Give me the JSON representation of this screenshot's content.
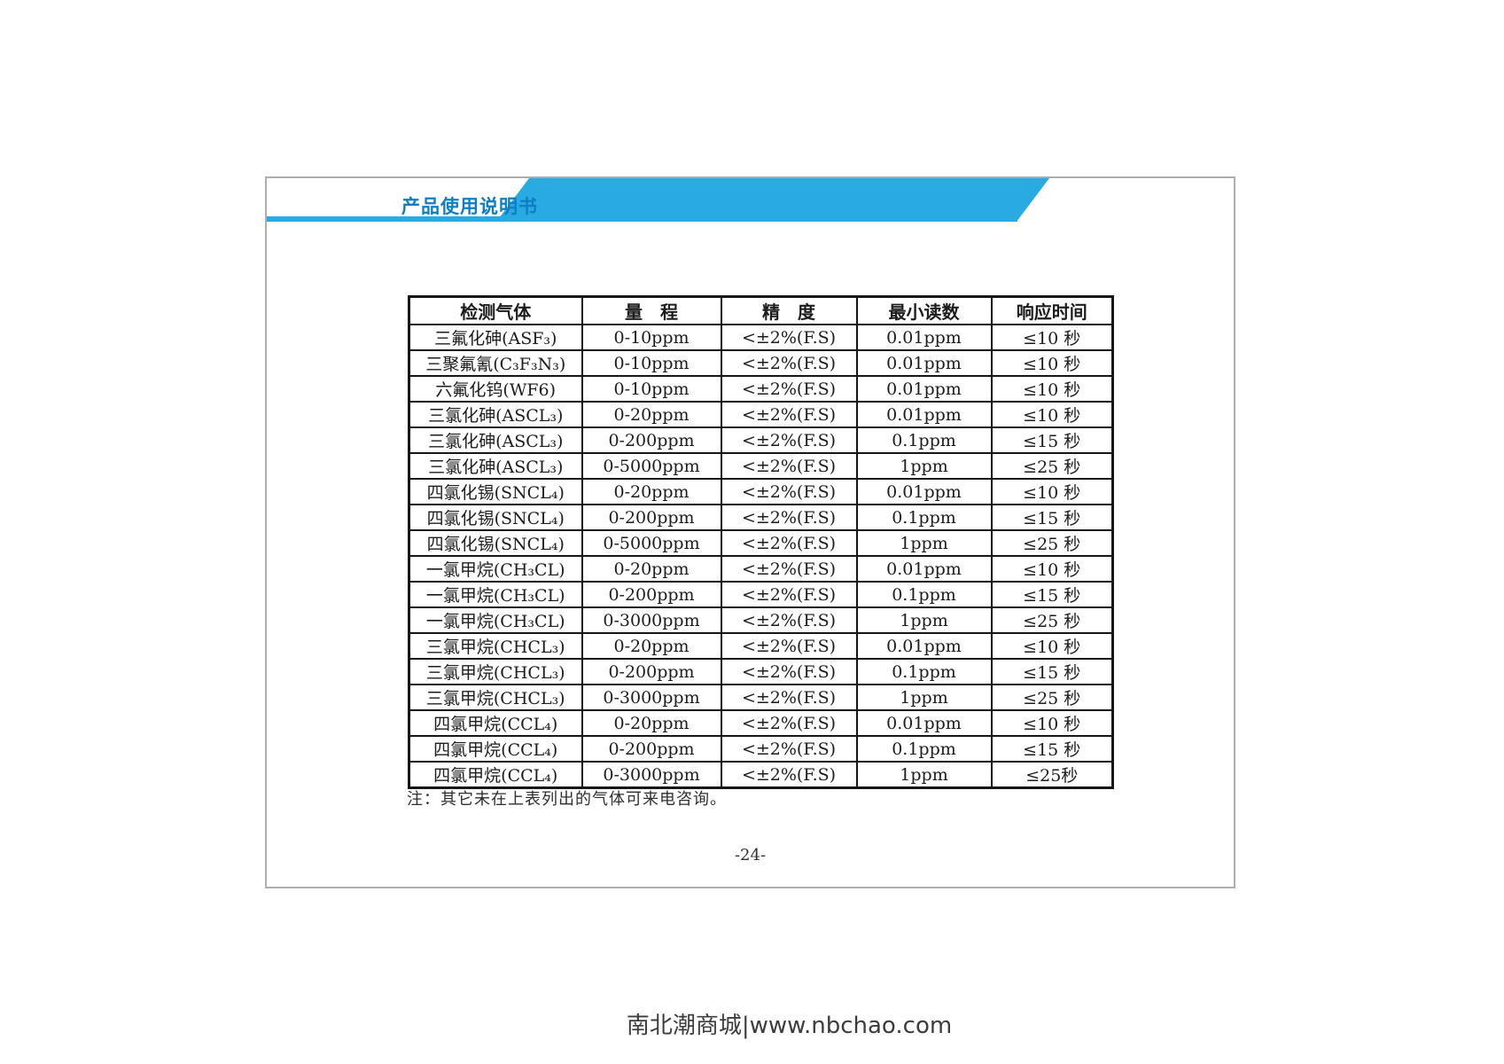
{
  "page": {
    "header": {
      "title": "产品使用说明书"
    },
    "table": {
      "columns": [
        "检测气体",
        "量　程",
        "精　度",
        "最小读数",
        "响应时间"
      ],
      "rows": [
        [
          "三氟化砷(ASF₃)",
          "0-10ppm",
          "<±2%(F.S)",
          "0.01ppm",
          "≤10 秒"
        ],
        [
          "三聚氟氰(C₃F₃N₃)",
          "0-10ppm",
          "<±2%(F.S)",
          "0.01ppm",
          "≤10 秒"
        ],
        [
          "六氟化钨(WF6)",
          "0-10ppm",
          "<±2%(F.S)",
          "0.01ppm",
          "≤10 秒"
        ],
        [
          "三氯化砷(ASCL₃)",
          "0-20ppm",
          "<±2%(F.S)",
          "0.01ppm",
          "≤10 秒"
        ],
        [
          "三氯化砷(ASCL₃)",
          "0-200ppm",
          "<±2%(F.S)",
          "0.1ppm",
          "≤15 秒"
        ],
        [
          "三氯化砷(ASCL₃)",
          "0-5000ppm",
          "<±2%(F.S)",
          "1ppm",
          "≤25 秒"
        ],
        [
          "四氯化锡(SNCL₄)",
          "0-20ppm",
          "<±2%(F.S)",
          "0.01ppm",
          "≤10 秒"
        ],
        [
          "四氯化锡(SNCL₄)",
          "0-200ppm",
          "<±2%(F.S)",
          "0.1ppm",
          "≤15 秒"
        ],
        [
          "四氯化锡(SNCL₄)",
          "0-5000ppm",
          "<±2%(F.S)",
          "1ppm",
          "≤25 秒"
        ],
        [
          "一氯甲烷(CH₃CL)",
          "0-20ppm",
          "<±2%(F.S)",
          "0.01ppm",
          "≤10 秒"
        ],
        [
          "一氯甲烷(CH₃CL)",
          "0-200ppm",
          "<±2%(F.S)",
          "0.1ppm",
          "≤15 秒"
        ],
        [
          "一氯甲烷(CH₃CL)",
          "0-3000ppm",
          "<±2%(F.S)",
          "1ppm",
          "≤25 秒"
        ],
        [
          "三氯甲烷(CHCL₃)",
          "0-20ppm",
          "<±2%(F.S)",
          "0.01ppm",
          "≤10 秒"
        ],
        [
          "三氯甲烷(CHCL₃)",
          "0-200ppm",
          "<±2%(F.S)",
          "0.1ppm",
          "≤15 秒"
        ],
        [
          "三氯甲烷(CHCL₃)",
          "0-3000ppm",
          "<±2%(F.S)",
          "1ppm",
          "≤25 秒"
        ],
        [
          "四氯甲烷(CCL₄)",
          "0-20ppm",
          "<±2%(F.S)",
          "0.01ppm",
          "≤10 秒"
        ],
        [
          "四氯甲烷(CCL₄)",
          "0-200ppm",
          "<±2%(F.S)",
          "0.1ppm",
          "≤15 秒"
        ],
        [
          "四氯甲烷(CCL₄)",
          "0-3000ppm",
          "<±2%(F.S)",
          "1ppm",
          "≤25秒"
        ]
      ]
    },
    "note": "注：其它未在上表列出的气体可来电咨询。",
    "page_number": "-24-"
  },
  "footer": {
    "text": "南北潮商城|www.nbchao.com"
  },
  "colors": {
    "banner_blue": "#29abe2",
    "title_blue": "#0d7ec4",
    "table_border": "#161616",
    "page_border": "#aeaeae"
  }
}
